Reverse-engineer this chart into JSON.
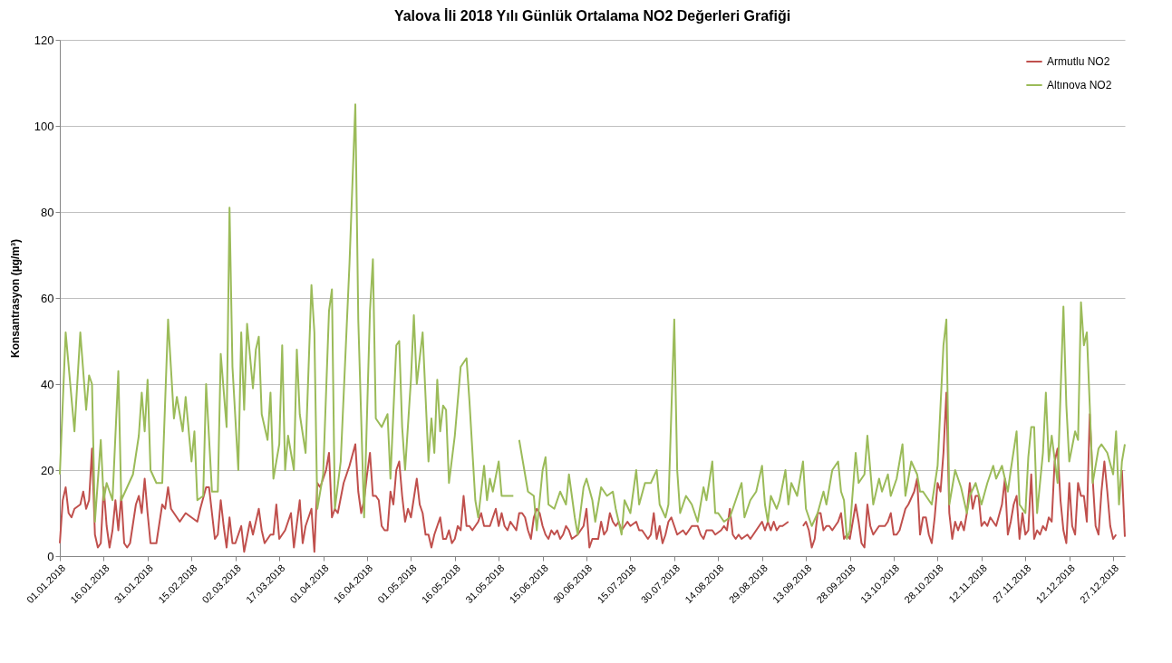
{
  "chart_data": {
    "type": "line",
    "title": "Yalova İli 2018 Yılı Günlük Ortalama NO2 Değerleri Grafiği",
    "ylabel": "Konsantrasyon (µg/m³)",
    "xlim": [
      "2018-01-01",
      "2018-12-31"
    ],
    "ylim": [
      0,
      120
    ],
    "yticks": [
      0,
      20,
      40,
      60,
      80,
      100,
      120
    ],
    "xticks": [
      {
        "value": "2018-01-01",
        "label": "01.01.2018"
      },
      {
        "value": "2018-01-16",
        "label": "16.01.2018"
      },
      {
        "value": "2018-01-31",
        "label": "31.01.2018"
      },
      {
        "value": "2018-02-15",
        "label": "15.02.2018"
      },
      {
        "value": "2018-03-02",
        "label": "02.03.2018"
      },
      {
        "value": "2018-03-17",
        "label": "17.03.2018"
      },
      {
        "value": "2018-04-01",
        "label": "01.04.2018"
      },
      {
        "value": "2018-04-16",
        "label": "16.04.2018"
      },
      {
        "value": "2018-05-01",
        "label": "01.05.2018"
      },
      {
        "value": "2018-05-16",
        "label": "16.05.2018"
      },
      {
        "value": "2018-05-31",
        "label": "31.05.2018"
      },
      {
        "value": "2018-06-15",
        "label": "15.06.2018"
      },
      {
        "value": "2018-06-30",
        "label": "30.06.2018"
      },
      {
        "value": "2018-07-15",
        "label": "15.07.2018"
      },
      {
        "value": "2018-07-30",
        "label": "30.07.2018"
      },
      {
        "value": "2018-08-14",
        "label": "14.08.2018"
      },
      {
        "value": "2018-08-29",
        "label": "29.08.2018"
      },
      {
        "value": "2018-09-13",
        "label": "13.09.2018"
      },
      {
        "value": "2018-09-28",
        "label": "28.09.2018"
      },
      {
        "value": "2018-10-13",
        "label": "13.10.2018"
      },
      {
        "value": "2018-10-28",
        "label": "28.10.2018"
      },
      {
        "value": "2018-11-12",
        "label": "12.11.2018"
      },
      {
        "value": "2018-11-27",
        "label": "27.11.2018"
      },
      {
        "value": "2018-12-12",
        "label": "12.12.2018"
      },
      {
        "value": "2018-12-27",
        "label": "27.12.2018"
      }
    ],
    "grid": "y",
    "legend": "top right",
    "series": [
      {
        "name": "Armutlu NO2",
        "color": "#c0504d",
        "x": [
          "2018-01-01",
          "2018-01-02",
          "2018-01-03",
          "2018-01-04",
          "2018-01-05",
          "2018-01-06",
          "2018-01-08",
          "2018-01-09",
          "2018-01-10",
          "2018-01-11",
          "2018-01-12",
          "2018-01-13",
          "2018-01-14",
          "2018-01-15",
          "2018-01-16",
          "2018-01-17",
          "2018-01-18",
          "2018-01-19",
          "2018-01-20",
          "2018-01-21",
          "2018-01-22",
          "2018-01-23",
          "2018-01-24",
          "2018-01-25",
          "2018-01-27",
          "2018-01-28",
          "2018-01-29",
          "2018-01-30",
          "2018-01-31",
          "2018-02-01",
          "2018-02-03",
          "2018-02-05",
          "2018-02-06",
          "2018-02-07",
          "2018-02-08",
          "2018-02-11",
          "2018-02-13",
          "2018-02-15",
          "2018-02-17",
          "2018-02-18",
          "2018-02-20",
          "2018-02-21",
          "2018-02-23",
          "2018-02-24",
          "2018-02-25",
          "2018-02-26",
          "2018-02-27",
          "2018-02-28",
          "2018-03-01",
          "2018-03-02",
          "2018-03-04",
          "2018-03-05",
          "2018-03-07",
          "2018-03-08",
          "2018-03-10",
          "2018-03-11",
          "2018-03-12",
          "2018-03-14",
          "2018-03-15",
          "2018-03-16",
          "2018-03-17",
          "2018-03-19",
          "2018-03-21",
          "2018-03-22",
          "2018-03-24",
          "2018-03-25",
          "2018-03-26",
          "2018-03-28",
          "2018-03-29",
          "2018-03-30",
          "2018-03-31",
          "2018-04-02",
          "2018-04-03",
          "2018-04-04",
          "2018-04-05",
          "2018-04-06",
          "2018-04-08",
          "2018-04-10",
          "2018-04-12",
          "2018-04-13",
          "2018-04-14",
          "2018-04-15",
          "2018-04-16",
          "2018-04-17",
          "2018-04-18",
          "2018-04-19",
          "2018-04-20",
          "2018-04-21",
          "2018-04-22",
          "2018-04-23",
          "2018-04-24",
          "2018-04-25",
          "2018-04-26",
          "2018-04-27",
          "2018-04-28",
          "2018-04-29",
          "2018-04-30",
          "2018-05-01",
          "2018-05-03",
          "2018-05-04",
          "2018-05-05",
          "2018-05-06",
          "2018-05-07",
          "2018-05-08",
          "2018-05-09",
          "2018-05-11",
          "2018-05-12",
          "2018-05-13",
          "2018-05-14",
          "2018-05-15",
          "2018-05-16",
          "2018-05-17",
          "2018-05-18",
          "2018-05-19",
          "2018-05-20",
          "2018-05-21",
          "2018-05-22",
          "2018-05-24",
          "2018-05-25",
          "2018-05-26",
          "2018-05-27",
          "2018-05-28",
          "2018-05-30",
          "2018-05-31",
          "2018-06-01",
          "2018-06-02",
          "2018-06-03",
          "2018-06-04",
          "2018-06-05",
          "2018-06-06",
          "2018-06-07",
          "2018-06-08",
          "2018-06-09",
          "2018-06-10",
          "2018-06-11",
          "2018-06-12",
          "2018-06-13",
          "2018-06-14",
          "2018-06-15",
          "2018-06-16",
          "2018-06-17",
          "2018-06-18",
          "2018-06-19",
          "2018-06-20",
          "2018-06-21",
          "2018-06-22",
          "2018-06-23",
          "2018-06-24",
          "2018-06-25",
          "2018-06-27",
          "2018-06-29",
          "2018-06-30",
          "2018-07-01",
          "2018-07-02",
          "2018-07-04",
          "2018-07-05",
          "2018-07-06",
          "2018-07-07",
          "2018-07-08",
          "2018-07-09",
          "2018-07-10",
          "2018-07-11",
          "2018-07-12",
          "2018-07-14",
          "2018-07-15",
          "2018-07-17",
          "2018-07-18",
          "2018-07-19",
          "2018-07-21",
          "2018-07-22",
          "2018-07-23",
          "2018-07-24",
          "2018-07-25",
          "2018-07-26",
          "2018-07-27",
          "2018-07-28",
          "2018-07-29",
          "2018-07-30",
          "2018-07-31",
          "2018-08-02",
          "2018-08-03",
          "2018-08-05",
          "2018-08-07",
          "2018-08-08",
          "2018-08-09",
          "2018-08-10",
          "2018-08-12",
          "2018-08-13",
          "2018-08-15",
          "2018-08-16",
          "2018-08-17",
          "2018-08-18",
          "2018-08-19",
          "2018-08-20",
          "2018-08-21",
          "2018-08-22",
          "2018-08-24",
          "2018-08-25",
          "2018-08-26",
          "2018-08-28",
          "2018-08-29",
          "2018-08-30",
          "2018-08-31",
          "2018-09-01",
          "2018-09-02",
          "2018-09-03",
          "2018-09-04",
          "2018-09-05",
          "2018-09-07",
          "2018-09-08",
          "2018-09-12",
          "2018-09-13",
          "2018-09-14",
          "2018-09-15",
          "2018-09-16",
          "2018-09-17",
          "2018-09-18",
          "2018-09-19",
          "2018-09-20",
          "2018-09-21",
          "2018-09-22",
          "2018-09-24",
          "2018-09-25",
          "2018-09-26",
          "2018-09-27",
          "2018-09-28",
          "2018-09-30",
          "2018-10-01",
          "2018-10-02",
          "2018-10-03",
          "2018-10-04",
          "2018-10-05",
          "2018-10-06",
          "2018-10-08",
          "2018-10-10",
          "2018-10-11",
          "2018-10-12",
          "2018-10-13",
          "2018-10-14",
          "2018-10-15",
          "2018-10-17",
          "2018-10-18",
          "2018-10-20",
          "2018-10-21",
          "2018-10-22",
          "2018-10-23",
          "2018-10-24",
          "2018-10-25",
          "2018-10-26",
          "2018-10-27",
          "2018-10-28",
          "2018-10-29",
          "2018-10-30",
          "2018-10-31",
          "2018-11-01",
          "2018-11-02",
          "2018-11-03",
          "2018-11-04",
          "2018-11-05",
          "2018-11-06",
          "2018-11-07",
          "2018-11-08",
          "2018-11-09",
          "2018-11-10",
          "2018-11-11",
          "2018-11-12",
          "2018-11-13",
          "2018-11-14",
          "2018-11-15",
          "2018-11-16",
          "2018-11-17",
          "2018-11-19",
          "2018-11-20",
          "2018-11-21",
          "2018-11-22",
          "2018-11-23",
          "2018-11-24",
          "2018-11-25",
          "2018-11-26",
          "2018-11-27",
          "2018-11-28",
          "2018-11-29",
          "2018-11-30",
          "2018-12-01",
          "2018-12-02",
          "2018-12-03",
          "2018-12-04",
          "2018-12-05",
          "2018-12-06",
          "2018-12-07",
          "2018-12-08",
          "2018-12-09",
          "2018-12-10",
          "2018-12-11",
          "2018-12-12",
          "2018-12-13",
          "2018-12-14",
          "2018-12-15",
          "2018-12-16",
          "2018-12-17",
          "2018-12-18",
          "2018-12-19",
          "2018-12-20",
          "2018-12-21",
          "2018-12-22",
          "2018-12-23",
          "2018-12-24",
          "2018-12-25",
          "2018-12-26",
          "2018-12-27",
          "2018-12-28",
          "2018-12-29",
          "2018-12-30",
          "2018-12-31"
        ],
        "values": [
          3,
          13,
          16,
          10,
          9,
          11,
          12,
          15,
          11,
          13,
          25,
          5,
          2,
          3,
          16,
          7,
          2,
          6,
          13,
          6,
          14,
          3,
          2,
          3,
          12,
          14,
          10,
          18,
          10,
          3,
          3,
          12,
          11,
          16,
          11,
          8,
          10,
          9,
          8,
          11,
          16,
          16,
          4,
          5,
          13,
          7,
          2,
          9,
          3,
          3,
          7,
          1,
          8,
          5,
          11,
          6,
          3,
          5,
          5,
          12,
          4,
          6,
          10,
          2,
          13,
          3,
          7,
          11,
          1,
          17,
          16,
          20,
          24,
          9,
          11,
          10,
          17,
          21,
          26,
          15,
          10,
          13,
          19,
          24,
          14,
          14,
          13,
          7,
          6,
          6,
          15,
          12,
          20,
          22,
          14,
          8,
          11,
          9,
          18,
          12,
          10,
          5,
          5,
          2,
          5,
          9,
          4,
          4,
          6,
          3,
          4,
          7,
          6,
          14,
          7,
          7,
          6,
          8,
          10,
          7,
          7,
          7,
          11,
          7,
          10,
          7,
          6,
          8,
          7,
          6,
          10,
          10,
          9,
          6,
          4,
          9,
          11,
          10,
          7,
          5,
          4,
          6,
          5,
          6,
          4,
          5,
          7,
          6,
          4,
          5,
          7,
          11,
          2,
          4,
          4,
          8,
          5,
          6,
          10,
          8,
          7,
          8,
          6,
          8,
          7,
          8,
          6,
          6,
          4,
          5,
          10,
          4,
          7,
          3,
          5,
          8,
          9,
          7,
          5,
          6,
          5,
          7,
          7,
          5,
          4,
          6,
          6,
          5,
          6,
          7,
          6,
          11,
          5,
          4,
          5,
          4,
          5,
          4,
          5,
          7,
          8,
          6,
          8,
          6,
          8,
          6,
          7,
          7,
          8,
          null,
          7,
          8,
          6,
          2,
          4,
          10,
          10,
          6,
          7,
          7,
          6,
          8,
          10,
          4,
          5,
          4,
          12,
          8,
          3,
          2,
          12,
          7,
          5,
          7,
          7,
          8,
          10,
          5,
          5,
          6,
          11,
          12,
          15,
          18,
          5,
          9,
          9,
          5,
          3,
          9,
          17,
          15,
          24,
          38,
          10,
          4,
          8,
          6,
          8,
          6,
          10,
          17,
          11,
          14,
          14,
          7,
          8,
          7,
          9,
          8,
          7,
          12,
          18,
          5,
          8,
          12,
          14,
          4,
          10,
          5,
          6,
          19,
          4,
          6,
          5,
          7,
          6,
          9,
          8,
          22,
          25,
          13,
          6,
          3,
          17,
          7,
          5,
          17,
          14,
          14,
          8,
          33,
          18,
          7,
          5,
          15,
          22,
          15,
          7,
          4,
          5,
          null,
          20,
          4.5
        ]
      },
      {
        "name": "Altınova NO2",
        "color": "#9bbb59",
        "x": [
          "2018-01-01",
          "2018-01-03",
          "2018-01-06",
          "2018-01-08",
          "2018-01-10",
          "2018-01-11",
          "2018-01-12",
          "2018-01-13",
          "2018-01-15",
          "2018-01-16",
          "2018-01-17",
          "2018-01-19",
          "2018-01-21",
          "2018-01-22",
          "2018-01-24",
          "2018-01-26",
          "2018-01-28",
          "2018-01-29",
          "2018-01-30",
          "2018-01-31",
          "2018-02-01",
          "2018-02-03",
          "2018-02-05",
          "2018-02-07",
          "2018-02-09",
          "2018-02-10",
          "2018-02-12",
          "2018-02-13",
          "2018-02-15",
          "2018-02-16",
          "2018-02-17",
          "2018-02-19",
          "2018-02-20",
          "2018-02-22",
          "2018-02-24",
          "2018-02-25",
          "2018-02-27",
          "2018-02-28",
          "2018-03-01",
          "2018-03-03",
          "2018-03-04",
          "2018-03-05",
          "2018-03-06",
          "2018-03-08",
          "2018-03-09",
          "2018-03-10",
          "2018-03-11",
          "2018-03-13",
          "2018-03-14",
          "2018-03-15",
          "2018-03-17",
          "2018-03-18",
          "2018-03-19",
          "2018-03-20",
          "2018-03-22",
          "2018-03-23",
          "2018-03-24",
          "2018-03-26",
          "2018-03-28",
          "2018-03-29",
          "2018-03-30",
          "2018-04-01",
          "2018-04-03",
          "2018-04-04",
          "2018-04-05",
          "2018-04-07",
          "2018-04-10",
          "2018-04-12",
          "2018-04-13",
          "2018-04-15",
          "2018-04-17",
          "2018-04-18",
          "2018-04-19",
          "2018-04-21",
          "2018-04-23",
          "2018-04-24",
          "2018-04-26",
          "2018-04-27",
          "2018-04-28",
          "2018-04-29",
          "2018-05-01",
          "2018-05-02",
          "2018-05-03",
          "2018-05-05",
          "2018-05-07",
          "2018-05-08",
          "2018-05-09",
          "2018-05-10",
          "2018-05-11",
          "2018-05-12",
          "2018-05-13",
          "2018-05-14",
          "2018-05-16",
          "2018-05-18",
          "2018-05-19",
          "2018-05-20",
          "2018-05-21",
          "2018-05-23",
          "2018-05-24",
          "2018-05-26",
          "2018-05-27",
          "2018-05-28",
          "2018-05-29",
          "2018-05-31",
          "2018-06-01",
          "2018-06-03",
          "2018-06-05",
          "2018-06-06",
          "2018-06-07",
          "2018-06-10",
          "2018-06-12",
          "2018-06-13",
          "2018-06-15",
          "2018-06-16",
          "2018-06-17",
          "2018-06-19",
          "2018-06-21",
          "2018-06-23",
          "2018-06-24",
          "2018-06-26",
          "2018-06-27",
          "2018-06-29",
          "2018-06-30",
          "2018-07-02",
          "2018-07-03",
          "2018-07-05",
          "2018-07-07",
          "2018-07-09",
          "2018-07-10",
          "2018-07-12",
          "2018-07-13",
          "2018-07-15",
          "2018-07-17",
          "2018-07-18",
          "2018-07-20",
          "2018-07-22",
          "2018-07-24",
          "2018-07-25",
          "2018-07-27",
          "2018-07-28",
          "2018-07-30",
          "2018-07-31",
          "2018-08-01",
          "2018-08-03",
          "2018-08-05",
          "2018-08-07",
          "2018-08-09",
          "2018-08-10",
          "2018-08-12",
          "2018-08-13",
          "2018-08-14",
          "2018-08-16",
          "2018-08-18",
          "2018-08-20",
          "2018-08-22",
          "2018-08-23",
          "2018-08-25",
          "2018-08-27",
          "2018-08-29",
          "2018-08-30",
          "2018-08-31",
          "2018-09-01",
          "2018-09-03",
          "2018-09-04",
          "2018-09-06",
          "2018-09-07",
          "2018-09-08",
          "2018-09-10",
          "2018-09-12",
          "2018-09-13",
          "2018-09-15",
          "2018-09-17",
          "2018-09-19",
          "2018-09-20",
          "2018-09-22",
          "2018-09-24",
          "2018-09-25",
          "2018-09-26",
          "2018-09-27",
          "2018-09-28",
          "2018-09-30",
          "2018-10-01",
          "2018-10-03",
          "2018-10-04",
          "2018-10-06",
          "2018-10-08",
          "2018-10-09",
          "2018-10-11",
          "2018-10-12",
          "2018-10-14",
          "2018-10-16",
          "2018-10-17",
          "2018-10-19",
          "2018-10-21",
          "2018-10-22",
          "2018-10-23",
          "2018-10-25",
          "2018-10-26",
          "2018-10-28",
          "2018-10-30",
          "2018-10-31",
          "2018-11-01",
          "2018-11-03",
          "2018-11-05",
          "2018-11-07",
          "2018-11-08",
          "2018-11-10",
          "2018-11-12",
          "2018-11-14",
          "2018-11-16",
          "2018-11-17",
          "2018-11-19",
          "2018-11-21",
          "2018-11-22",
          "2018-11-24",
          "2018-11-25",
          "2018-11-27",
          "2018-11-28",
          "2018-11-29",
          "2018-11-30",
          "2018-12-01",
          "2018-12-03",
          "2018-12-04",
          "2018-12-05",
          "2018-12-06",
          "2018-12-08",
          "2018-12-10",
          "2018-12-11",
          "2018-12-12",
          "2018-12-14",
          "2018-12-15",
          "2018-12-16",
          "2018-12-17",
          "2018-12-18",
          "2018-12-19",
          "2018-12-20",
          "2018-12-22",
          "2018-12-23",
          "2018-12-25",
          "2018-12-27",
          "2018-12-28",
          "2018-12-29",
          "2018-12-30",
          "2018-12-31"
        ],
        "values": [
          19,
          52,
          29,
          52,
          34,
          42,
          40,
          8,
          27,
          13,
          17,
          13,
          43,
          13,
          16,
          19,
          28,
          38,
          29,
          41,
          20,
          17,
          17,
          55,
          32,
          37,
          29,
          37,
          22,
          29,
          13,
          14,
          40,
          15,
          15,
          47,
          30,
          81,
          44,
          20,
          52,
          34,
          54,
          39,
          48,
          51,
          33,
          27,
          38,
          18,
          26,
          49,
          20,
          28,
          20,
          48,
          33,
          24,
          63,
          52,
          11,
          19,
          57,
          62,
          11,
          22,
          68,
          105,
          55,
          9,
          57,
          69,
          32,
          30,
          33,
          18,
          49,
          50,
          30,
          20,
          41,
          56,
          40,
          52,
          22,
          32,
          24,
          41,
          29,
          35,
          34,
          17,
          28,
          44,
          45,
          46,
          36,
          13,
          9,
          21,
          13,
          18,
          15,
          22,
          14,
          14,
          14,
          null,
          27,
          15,
          14,
          6,
          20,
          23,
          12,
          11,
          15,
          12,
          19,
          9,
          5,
          16,
          18,
          13,
          8,
          16,
          14,
          15,
          11,
          5,
          13,
          10,
          20,
          12,
          17,
          17,
          20,
          12,
          9,
          12,
          55,
          20,
          10,
          14,
          12,
          8,
          16,
          13,
          22,
          10,
          10,
          8,
          9,
          13,
          17,
          9,
          13,
          15,
          21,
          12,
          8,
          14,
          11,
          13,
          20,
          12,
          17,
          14,
          22,
          11,
          7,
          10,
          15,
          12,
          20,
          22,
          15,
          13,
          4,
          6,
          24,
          17,
          19,
          28,
          12,
          18,
          15,
          19,
          14,
          18,
          26,
          14,
          22,
          19,
          15,
          15,
          13,
          12,
          21,
          49,
          55,
          12,
          20,
          16,
          10,
          14,
          17,
          12,
          17,
          21,
          18,
          21,
          15,
          20,
          29,
          12,
          10,
          23,
          30,
          30,
          10,
          24,
          38,
          22,
          28,
          17,
          58,
          35,
          22,
          29,
          27,
          59,
          49,
          52,
          35,
          17,
          25,
          26,
          24,
          19,
          29,
          12,
          22,
          26
        ]
      }
    ]
  }
}
